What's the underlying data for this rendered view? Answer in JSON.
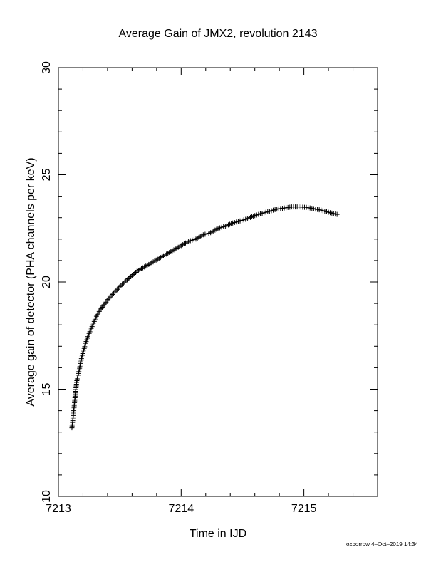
{
  "chart_data": {
    "type": "scatter",
    "title": "Average Gain of JMX2, revolution 2143",
    "xlabel": "Time in IJD",
    "ylabel": "Average gain of detector (PHA channels per keV)",
    "xlim": [
      7213,
      7215.6
    ],
    "ylim": [
      10,
      30
    ],
    "x_ticks": [
      7213,
      7214,
      7215
    ],
    "x_tick_labels": [
      "7213",
      "7214",
      "7215"
    ],
    "y_ticks": [
      10,
      15,
      20,
      25,
      30
    ],
    "y_tick_labels": [
      "10",
      "15",
      "20",
      "25",
      "30"
    ],
    "grid": false,
    "marker": "plus",
    "series": [
      {
        "color": "#000000",
        "points": [
          [
            7213.11,
            13.2
          ],
          [
            7213.12,
            13.7
          ],
          [
            7213.13,
            14.3
          ],
          [
            7213.14,
            14.9
          ],
          [
            7213.15,
            15.4
          ],
          [
            7213.17,
            15.9
          ],
          [
            7213.19,
            16.5
          ],
          [
            7213.21,
            16.9
          ],
          [
            7213.23,
            17.3
          ],
          [
            7213.25,
            17.6
          ],
          [
            7213.28,
            18.0
          ],
          [
            7213.31,
            18.4
          ],
          [
            7213.34,
            18.7
          ],
          [
            7213.38,
            19.0
          ],
          [
            7213.42,
            19.3
          ],
          [
            7213.47,
            19.6
          ],
          [
            7213.52,
            19.9
          ],
          [
            7213.58,
            20.2
          ],
          [
            7213.64,
            20.5
          ],
          [
            7213.7,
            20.7
          ],
          [
            7213.76,
            20.9
          ],
          [
            7213.82,
            21.1
          ],
          [
            7213.88,
            21.3
          ],
          [
            7213.94,
            21.5
          ],
          [
            7214.0,
            21.7
          ],
          [
            7214.06,
            21.9
          ],
          [
            7214.12,
            22.0
          ],
          [
            7214.18,
            22.2
          ],
          [
            7214.24,
            22.3
          ],
          [
            7214.3,
            22.5
          ],
          [
            7214.36,
            22.6
          ],
          [
            7214.42,
            22.75
          ],
          [
            7214.48,
            22.85
          ],
          [
            7214.54,
            22.95
          ],
          [
            7214.6,
            23.1
          ],
          [
            7214.66,
            23.2
          ],
          [
            7214.72,
            23.3
          ],
          [
            7214.78,
            23.4
          ],
          [
            7214.84,
            23.45
          ],
          [
            7214.9,
            23.5
          ],
          [
            7214.96,
            23.5
          ],
          [
            7215.02,
            23.48
          ],
          [
            7215.08,
            23.42
          ],
          [
            7215.14,
            23.35
          ],
          [
            7215.2,
            23.25
          ],
          [
            7215.27,
            23.15
          ]
        ]
      }
    ]
  },
  "footer": {
    "signature": "oxborrow  4–Oct–2019 14:34"
  }
}
